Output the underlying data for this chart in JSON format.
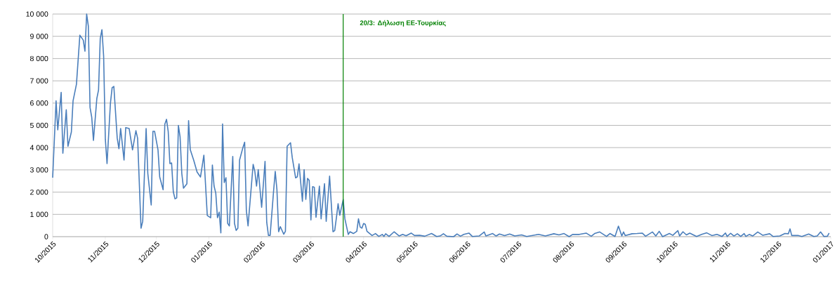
{
  "chart_data": {
    "type": "line",
    "color": "#4a7ebb",
    "grid": "y",
    "x": [
      "2015-10-01",
      "2015-10-03",
      "2015-10-04",
      "2015-10-06",
      "2015-10-07",
      "2015-10-09",
      "2015-10-10",
      "2015-10-12",
      "2015-10-13",
      "2015-10-15",
      "2015-10-17",
      "2015-10-19",
      "2015-10-20",
      "2015-10-21",
      "2015-10-22",
      "2015-10-23",
      "2015-10-24",
      "2015-10-25",
      "2015-10-27",
      "2015-10-28",
      "2015-10-29",
      "2015-10-30",
      "2015-10-31",
      "2015-11-01",
      "2015-11-02",
      "2015-11-04",
      "2015-11-05",
      "2015-11-06",
      "2015-11-08",
      "2015-11-09",
      "2015-11-10",
      "2015-11-12",
      "2015-11-13",
      "2015-11-15",
      "2015-11-17",
      "2015-11-19",
      "2015-11-20",
      "2015-11-22",
      "2015-11-23",
      "2015-11-25",
      "2015-11-26",
      "2015-11-28",
      "2015-11-29",
      "2015-11-30",
      "2015-12-02",
      "2015-12-03",
      "2015-12-05",
      "2015-12-06",
      "2015-12-07",
      "2015-12-08",
      "2015-12-09",
      "2015-12-10",
      "2015-12-11",
      "2015-12-12",
      "2015-12-13",
      "2015-12-14",
      "2015-12-15",
      "2015-12-16",
      "2015-12-17",
      "2015-12-19",
      "2015-12-20",
      "2015-12-21",
      "2015-12-23",
      "2015-12-25",
      "2015-12-27",
      "2015-12-29",
      "2015-12-31",
      "2016-01-02",
      "2016-01-03",
      "2016-01-04",
      "2016-01-05",
      "2016-01-06",
      "2016-01-07",
      "2016-01-08",
      "2016-01-09",
      "2016-01-10",
      "2016-01-11",
      "2016-01-12",
      "2016-01-13",
      "2016-01-15",
      "2016-01-16",
      "2016-01-17",
      "2016-01-18",
      "2016-01-19",
      "2016-01-21",
      "2016-01-22",
      "2016-01-23",
      "2016-01-24",
      "2016-01-27",
      "2016-01-28",
      "2016-01-29",
      "2016-01-30",
      "2016-02-01",
      "2016-02-03",
      "2016-02-04",
      "2016-02-05",
      "2016-02-06",
      "2016-02-08",
      "2016-02-09",
      "2016-02-10",
      "2016-02-11",
      "2016-02-12",
      "2016-02-14",
      "2016-02-15",
      "2016-02-16",
      "2016-02-18",
      "2016-02-19",
      "2016-02-21",
      "2016-02-22",
      "2016-02-23",
      "2016-02-25",
      "2016-02-26",
      "2016-02-27",
      "2016-02-28",
      "2016-02-29",
      "2016-03-01",
      "2016-03-02",
      "2016-03-03",
      "2016-03-04",
      "2016-03-06",
      "2016-03-07",
      "2016-03-09",
      "2016-03-10",
      "2016-03-12",
      "2016-03-14",
      "2016-03-15",
      "2016-03-16",
      "2016-03-17",
      "2016-03-18",
      "2016-03-20",
      "2016-03-21",
      "2016-03-23",
      "2016-03-24",
      "2016-03-26",
      "2016-03-28",
      "2016-03-29",
      "2016-03-30",
      "2016-03-31",
      "2016-04-01",
      "2016-04-02",
      "2016-04-03",
      "2016-04-06",
      "2016-04-08",
      "2016-04-10",
      "2016-04-12",
      "2016-04-13",
      "2016-04-14",
      "2016-04-16",
      "2016-04-19",
      "2016-04-22",
      "2016-04-24",
      "2016-04-26",
      "2016-04-29",
      "2016-05-01",
      "2016-05-04",
      "2016-05-07",
      "2016-05-11",
      "2016-05-14",
      "2016-05-16",
      "2016-05-18",
      "2016-05-20",
      "2016-05-24",
      "2016-05-26",
      "2016-05-28",
      "2016-05-30",
      "2016-06-02",
      "2016-06-04",
      "2016-06-08",
      "2016-06-11",
      "2016-06-12",
      "2016-06-16",
      "2016-06-18",
      "2016-06-20",
      "2016-06-23",
      "2016-06-26",
      "2016-06-29",
      "2016-07-03",
      "2016-07-06",
      "2016-07-09",
      "2016-07-13",
      "2016-07-17",
      "2016-07-22",
      "2016-07-25",
      "2016-07-28",
      "2016-07-31",
      "2016-08-02",
      "2016-08-06",
      "2016-08-10",
      "2016-08-13",
      "2016-08-15",
      "2016-08-18",
      "2016-08-22",
      "2016-08-24",
      "2016-08-27",
      "2016-08-29",
      "2016-08-31",
      "2016-09-01",
      "2016-09-02",
      "2016-09-06",
      "2016-09-09",
      "2016-09-12",
      "2016-09-14",
      "2016-09-18",
      "2016-09-20",
      "2016-09-22",
      "2016-09-24",
      "2016-09-28",
      "2016-09-30",
      "2016-10-03",
      "2016-10-04",
      "2016-10-06",
      "2016-10-08",
      "2016-10-10",
      "2016-10-14",
      "2016-10-17",
      "2016-10-20",
      "2016-10-23",
      "2016-10-26",
      "2016-10-29",
      "2016-10-31",
      "2016-11-01",
      "2016-11-03",
      "2016-11-05",
      "2016-11-07",
      "2016-11-09",
      "2016-11-11",
      "2016-11-12",
      "2016-11-14",
      "2016-11-16",
      "2016-11-19",
      "2016-11-22",
      "2016-11-26",
      "2016-11-28",
      "2016-12-02",
      "2016-12-05",
      "2016-12-07",
      "2016-12-08",
      "2016-12-09",
      "2016-12-13",
      "2016-12-15",
      "2016-12-19",
      "2016-12-22",
      "2016-12-24",
      "2016-12-26",
      "2016-12-28",
      "2016-12-30",
      "2016-12-31"
    ],
    "values": [
      2650,
      6100,
      4800,
      6480,
      3750,
      5700,
      4060,
      4700,
      6100,
      6850,
      9050,
      8830,
      8330,
      10000,
      9460,
      5800,
      5360,
      4320,
      6210,
      6590,
      8900,
      9300,
      8100,
      4380,
      3280,
      6000,
      6690,
      6750,
      4420,
      3950,
      4860,
      3440,
      4900,
      4860,
      3900,
      4760,
      4420,
      380,
      690,
      4860,
      2840,
      1420,
      4730,
      4730,
      3900,
      2680,
      2110,
      5050,
      5270,
      4730,
      3280,
      3310,
      2020,
      1700,
      1740,
      5000,
      4480,
      2840,
      2180,
      2370,
      5210,
      3900,
      3440,
      2900,
      2680,
      3660,
      950,
      850,
      3220,
      2270,
      1960,
      850,
      1100,
      170,
      5060,
      2430,
      2650,
      600,
      480,
      3600,
      600,
      280,
      380,
      3440,
      4010,
      4240,
      1170,
      480,
      3250,
      2930,
      2270,
      3010,
      1320,
      3380,
      640,
      60,
      60,
      2020,
      2930,
      2110,
      220,
      450,
      110,
      240,
      4060,
      4220,
      3560,
      2640,
      2690,
      3270,
      1590,
      3010,
      1670,
      2620,
      2530,
      750,
      2250,
      2220,
      870,
      2270,
      800,
      2380,
      690,
      2720,
      220,
      270,
      850,
      1480,
      960,
      1670,
      800,
      100,
      220,
      140,
      240,
      800,
      430,
      380,
      590,
      550,
      240,
      50,
      140,
      10,
      100,
      10,
      130,
      10,
      220,
      30,
      100,
      40,
      160,
      50,
      60,
      20,
      140,
      10,
      30,
      130,
      20,
      0,
      120,
      20,
      100,
      160,
      10,
      30,
      210,
      30,
      140,
      30,
      120,
      50,
      120,
      30,
      80,
      10,
      50,
      100,
      30,
      130,
      80,
      140,
      0,
      100,
      100,
      160,
      20,
      140,
      210,
      10,
      140,
      10,
      470,
      30,
      210,
      50,
      130,
      140,
      160,
      20,
      210,
      30,
      240,
      0,
      140,
      60,
      270,
      30,
      220,
      80,
      160,
      10,
      100,
      170,
      50,
      100,
      10,
      160,
      10,
      150,
      30,
      130,
      10,
      140,
      10,
      100,
      30,
      210,
      60,
      130,
      10,
      30,
      140,
      130,
      350,
      50,
      50,
      10,
      120,
      10,
      30,
      210,
      10,
      20,
      160
    ],
    "xlim": [
      "2015-10-01",
      "2017-01-01"
    ],
    "ylim": [
      0,
      10000
    ],
    "xticks": [
      {
        "value": "2015-10-01",
        "label": "10/2015"
      },
      {
        "value": "2015-11-01",
        "label": "11/2015"
      },
      {
        "value": "2015-12-01",
        "label": "12/2015"
      },
      {
        "value": "2016-01-01",
        "label": "01/2016"
      },
      {
        "value": "2016-02-01",
        "label": "02/2016"
      },
      {
        "value": "2016-03-01",
        "label": "03/2016"
      },
      {
        "value": "2016-04-01",
        "label": "04/2016"
      },
      {
        "value": "2016-05-01",
        "label": "05/2016"
      },
      {
        "value": "2016-06-01",
        "label": "06/2016"
      },
      {
        "value": "2016-07-01",
        "label": "07/2016"
      },
      {
        "value": "2016-08-01",
        "label": "08/2016"
      },
      {
        "value": "2016-09-01",
        "label": "09/2016"
      },
      {
        "value": "2016-10-01",
        "label": "10/2016"
      },
      {
        "value": "2016-11-01",
        "label": "11/2016"
      },
      {
        "value": "2016-12-01",
        "label": "12/2016"
      },
      {
        "value": "2017-01-01",
        "label": "01/2017"
      }
    ],
    "yticks": [
      0,
      {
        "value": 1000,
        "label": "1 000"
      },
      {
        "value": 2000,
        "label": "2 000"
      },
      {
        "value": 3000,
        "label": "3 000"
      },
      {
        "value": 4000,
        "label": "4 000"
      },
      {
        "value": 5000,
        "label": "5 000"
      },
      {
        "value": 6000,
        "label": "6 000"
      },
      {
        "value": 7000,
        "label": "7 000"
      },
      {
        "value": 8000,
        "label": "8 000"
      },
      {
        "value": 9000,
        "label": "9 000"
      },
      {
        "value": 10000,
        "label": "10 000"
      }
    ],
    "ref_lines": [
      {
        "axis": "x",
        "value": "2016-03-20",
        "label": "20/3:  Δήλωση ΕΕ-Τουρκίας",
        "color": "#008000"
      }
    ]
  }
}
